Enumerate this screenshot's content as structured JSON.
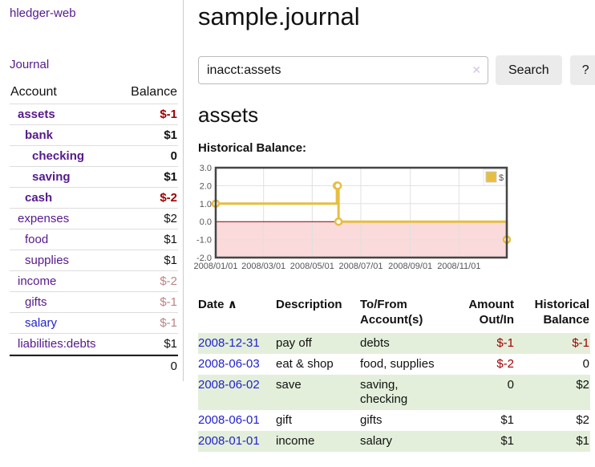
{
  "colors": {
    "purple_link": "#551a8b",
    "blue_link": "#2222cc",
    "negative_strong": "#a00000",
    "negative_muted": "#bc8383",
    "row_stripe_green": "#e3efda",
    "chart_line_gold": "#e6be41",
    "chart_negative_region": "#fadada",
    "chart_zero_line": "#8b0000",
    "chart_border": "#454545"
  },
  "sidebar": {
    "app_title": "hledger-web",
    "journal_label": "Journal",
    "accounts": {
      "header": {
        "account": "Account",
        "balance": "Balance"
      },
      "rows": [
        {
          "name": "assets",
          "indent": 1,
          "bold": true,
          "link_color": "purple",
          "balance": "$-1",
          "balance_color": "negative-strong"
        },
        {
          "name": "bank",
          "indent": 2,
          "bold": true,
          "link_color": "purple",
          "balance": "$1",
          "balance_color": "default"
        },
        {
          "name": "checking",
          "indent": 3,
          "bold": true,
          "link_color": "purple",
          "balance": "0",
          "balance_color": "default"
        },
        {
          "name": "saving",
          "indent": 3,
          "bold": true,
          "link_color": "purple",
          "balance": "$1",
          "balance_color": "default"
        },
        {
          "name": "cash",
          "indent": 2,
          "bold": true,
          "link_color": "purple",
          "balance": "$-2",
          "balance_color": "negative-strong"
        },
        {
          "name": "expenses",
          "indent": 1,
          "bold": false,
          "link_color": "purple",
          "balance": "$2",
          "balance_color": "default"
        },
        {
          "name": "food",
          "indent": 2,
          "bold": false,
          "link_color": "purple",
          "balance": "$1",
          "balance_color": "default"
        },
        {
          "name": "supplies",
          "indent": 2,
          "bold": false,
          "link_color": "purple",
          "balance": "$1",
          "balance_color": "default"
        },
        {
          "name": "income",
          "indent": 1,
          "bold": false,
          "link_color": "purple",
          "balance": "$-2",
          "balance_color": "negative-muted"
        },
        {
          "name": "gifts",
          "indent": 2,
          "bold": false,
          "link_color": "purple",
          "balance": "$-1",
          "balance_color": "negative-muted"
        },
        {
          "name": "salary",
          "indent": 2,
          "bold": false,
          "link_color": "blue",
          "balance": "$-1",
          "balance_color": "negative-muted"
        },
        {
          "name": "liabilities:debts",
          "indent": 1,
          "bold": false,
          "link_color": "purple",
          "balance": "$1",
          "balance_color": "default"
        }
      ],
      "total": "0"
    }
  },
  "main": {
    "title": "sample.journal",
    "search": {
      "query": "inacct:assets",
      "clear_icon": "✕",
      "search_button": "Search",
      "help_button": "?"
    },
    "account_heading": "assets",
    "chart_heading": "Historical Balance:"
  },
  "chart_data": {
    "type": "line",
    "title": "Historical Balance",
    "xlim": [
      "2008-01-01",
      "2008-12-31"
    ],
    "ylim": [
      -2,
      3
    ],
    "x_ticks": [
      "2008/01/01",
      "2008/03/01",
      "2008/05/01",
      "2008/07/01",
      "2008/09/01",
      "2008/11/01"
    ],
    "y_ticks": [
      "3.0",
      "2.0",
      "1.0",
      "0.0",
      "-1.0",
      "-2.0"
    ],
    "grid": true,
    "legend_position": "top-right",
    "series": [
      {
        "name": "$",
        "color": "#e6be41",
        "style": "step-after",
        "points": [
          {
            "date": "2008-01-01",
            "value": 1
          },
          {
            "date": "2008-06-01",
            "value": 2
          },
          {
            "date": "2008-06-02",
            "value": 2
          },
          {
            "date": "2008-06-03",
            "value": 0
          },
          {
            "date": "2008-12-31",
            "value": -1
          }
        ]
      }
    ]
  },
  "register": {
    "headers": {
      "date": "Date",
      "description": "Description",
      "tofrom_line1": "To/From",
      "tofrom_line2": "Account(s)",
      "amount_line1": "Amount",
      "amount_line2": "Out/In",
      "balance_line1": "Historical",
      "balance_line2": "Balance"
    },
    "sort_icon": "∧",
    "rows": [
      {
        "date": "2008-12-31",
        "description": "pay off",
        "accounts": "debts",
        "amount": "$-1",
        "amount_negative": true,
        "balance": "$-1",
        "balance_negative": true
      },
      {
        "date": "2008-06-03",
        "description": "eat & shop",
        "accounts": "food, supplies",
        "amount": "$-2",
        "amount_negative": true,
        "balance": "0",
        "balance_negative": false
      },
      {
        "date": "2008-06-02",
        "description": "save",
        "accounts": "saving, checking",
        "amount": "0",
        "amount_negative": false,
        "balance": "$2",
        "balance_negative": false
      },
      {
        "date": "2008-06-01",
        "description": "gift",
        "accounts": "gifts",
        "amount": "$1",
        "amount_negative": false,
        "balance": "$2",
        "balance_negative": false
      },
      {
        "date": "2008-01-01",
        "description": "income",
        "accounts": "salary",
        "amount": "$1",
        "amount_negative": false,
        "balance": "$1",
        "balance_negative": false
      }
    ]
  }
}
